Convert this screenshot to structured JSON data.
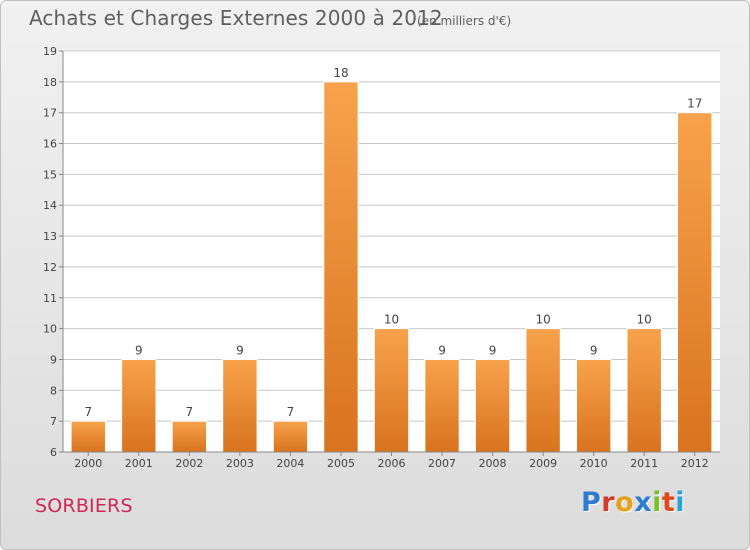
{
  "header": {
    "title": "Achats et Charges Externes 2000 à 2012",
    "subtitle": "(en milliers d'€)"
  },
  "footer": {
    "commune": "SORBIERS",
    "brand": "Proxiti",
    "brand_letter_colors": [
      "#2e7bd0",
      "#d13b2a",
      "#e2a21a",
      "#2e7bd0",
      "#7bbf2a",
      "#e0471d",
      "#2aa3d6"
    ]
  },
  "colors": {
    "bar_light": "#f7a24c",
    "bar_dark": "#d9731f",
    "grid": "#c8c8c8",
    "axis_text": "#444444"
  },
  "chart_data": {
    "type": "bar",
    "title": "Achats et Charges Externes 2000 à 2012",
    "subtitle": "(en milliers d'€)",
    "categories": [
      "2000",
      "2001",
      "2002",
      "2003",
      "2004",
      "2005",
      "2006",
      "2007",
      "2008",
      "2009",
      "2010",
      "2011",
      "2012"
    ],
    "values": [
      7,
      9,
      7,
      9,
      7,
      18,
      10,
      9,
      9,
      10,
      9,
      10,
      17
    ],
    "ylim": [
      6,
      19
    ],
    "yticks": [
      6,
      7,
      8,
      9,
      10,
      11,
      12,
      13,
      14,
      15,
      16,
      17,
      18,
      19
    ],
    "grid": true,
    "data_labels": true
  }
}
